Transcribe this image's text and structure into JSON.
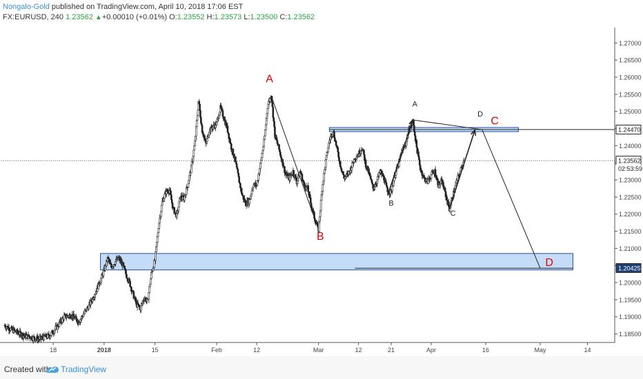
{
  "header": {
    "author": "Nongalo-Gold",
    "published": " published on TradingView.com, April 10, 2018 17:06 EST",
    "symbol": "FX:EURUSD, 240",
    "last": "1.23562",
    "change": "+0.00010 (+0.01%)",
    "o_label": "O:",
    "o_value": "1.23552",
    "h_label": "H:",
    "h_value": "1.23573",
    "l_label": "L:",
    "l_value": "1.23500",
    "c_label": "C:",
    "c_value": "1.23562"
  },
  "footer": {
    "created_with": "Created with",
    "brand": "TradingView"
  },
  "colors": {
    "up": "#2aa542",
    "candle": "#222222",
    "zone": "#b7d3f7",
    "zone_border": "#1f4e9c",
    "red_label": "#e00000",
    "axis_text": "#444444"
  },
  "chart_data": {
    "type": "candlestick",
    "y_axis": {
      "range": [
        1.1825,
        1.2745
      ],
      "ticks": [
        "1.18500",
        "1.19000",
        "1.19500",
        "1.20000",
        "1.20500",
        "1.21000",
        "1.21500",
        "1.22000",
        "1.22500",
        "1.23000",
        "1.23500",
        "1.24000",
        "1.24500",
        "1.25000",
        "1.25500",
        "1.26000",
        "1.26500",
        "1.27000"
      ],
      "price_labels": [
        {
          "text": "1.24470",
          "value": 1.2447,
          "style": "outline"
        },
        {
          "text": "1.23562",
          "value": 1.23562,
          "style": "outline"
        },
        {
          "text": "02:53:59",
          "value": 1.2333,
          "style": "plain"
        },
        {
          "text": "1.20425",
          "value": 1.20425,
          "style": "filled"
        }
      ]
    },
    "x_axis": {
      "ticks": [
        {
          "label": "18",
          "day": -14
        },
        {
          "label": "2018",
          "day": 0,
          "bold": true
        },
        {
          "label": "15",
          "day": 14
        },
        {
          "label": "Feb",
          "day": 31
        },
        {
          "label": "12",
          "day": 42
        },
        {
          "label": "Mar",
          "day": 59
        },
        {
          "label": "12",
          "day": 70
        },
        {
          "label": "21",
          "day": 79
        },
        {
          "label": "Apr",
          "day": 90
        },
        {
          "label": "16",
          "day": 105
        },
        {
          "label": "May",
          "day": 120
        },
        {
          "label": "14",
          "day": 133
        }
      ]
    },
    "price_path": [
      [
        -27.5,
        1.1875
      ],
      [
        -25,
        1.186
      ],
      [
        -22,
        1.1845
      ],
      [
        -18,
        1.1835
      ],
      [
        -15,
        1.1845
      ],
      [
        -13,
        1.187
      ],
      [
        -11,
        1.19
      ],
      [
        -9,
        1.1905
      ],
      [
        -7,
        1.1885
      ],
      [
        -4,
        1.1935
      ],
      [
        -2,
        1.198
      ],
      [
        0,
        1.2035
      ],
      [
        1,
        1.207
      ],
      [
        2,
        1.2045
      ],
      [
        3,
        1.206
      ],
      [
        4,
        1.207
      ],
      [
        5,
        1.2055
      ],
      [
        6,
        1.2025
      ],
      [
        7,
        1.2
      ],
      [
        8,
        1.1965
      ],
      [
        9,
        1.1935
      ],
      [
        10,
        1.1925
      ],
      [
        11,
        1.1955
      ],
      [
        12,
        1.1945
      ],
      [
        13,
        1.2025
      ],
      [
        14,
        1.2065
      ],
      [
        15,
        1.2165
      ],
      [
        16,
        1.2235
      ],
      [
        17,
        1.2265
      ],
      [
        18,
        1.227
      ],
      [
        19,
        1.2215
      ],
      [
        20,
        1.2195
      ],
      [
        21,
        1.225
      ],
      [
        22,
        1.2245
      ],
      [
        23,
        1.2285
      ],
      [
        24,
        1.2335
      ],
      [
        25,
        1.241
      ],
      [
        26,
        1.253
      ],
      [
        27,
        1.2445
      ],
      [
        28,
        1.2405
      ],
      [
        29,
        1.2445
      ],
      [
        30,
        1.2455
      ],
      [
        31,
        1.2465
      ],
      [
        32,
        1.251
      ],
      [
        33,
        1.248
      ],
      [
        34,
        1.2445
      ],
      [
        35,
        1.2395
      ],
      [
        36,
        1.236
      ],
      [
        37,
        1.2305
      ],
      [
        38,
        1.2255
      ],
      [
        39,
        1.223
      ],
      [
        40,
        1.224
      ],
      [
        41,
        1.2285
      ],
      [
        42,
        1.2285
      ],
      [
        43,
        1.2345
      ],
      [
        44,
        1.241
      ],
      [
        45,
        1.2515
      ],
      [
        46,
        1.255
      ],
      [
        47,
        1.243
      ],
      [
        48,
        1.2395
      ],
      [
        49,
        1.2355
      ],
      [
        50,
        1.2315
      ],
      [
        51,
        1.2305
      ],
      [
        52,
        1.2325
      ],
      [
        53,
        1.2295
      ],
      [
        54,
        1.2325
      ],
      [
        55,
        1.2285
      ],
      [
        56,
        1.2275
      ],
      [
        57,
        1.2225
      ],
      [
        58,
        1.2185
      ],
      [
        59,
        1.2155
      ],
      [
        60,
        1.2275
      ],
      [
        61,
        1.2355
      ],
      [
        62,
        1.2415
      ],
      [
        63,
        1.2445
      ],
      [
        64,
        1.2395
      ],
      [
        65,
        1.2345
      ],
      [
        66,
        1.2305
      ],
      [
        67,
        1.2315
      ],
      [
        68,
        1.2335
      ],
      [
        69,
        1.2365
      ],
      [
        70,
        1.2375
      ],
      [
        71,
        1.2395
      ],
      [
        72,
        1.2345
      ],
      [
        73,
        1.2315
      ],
      [
        74,
        1.2275
      ],
      [
        75,
        1.2295
      ],
      [
        76,
        1.2325
      ],
      [
        77,
        1.2305
      ],
      [
        78,
        1.2265
      ],
      [
        79,
        1.2265
      ],
      [
        80,
        1.2315
      ],
      [
        81,
        1.2345
      ],
      [
        82,
        1.2385
      ],
      [
        83,
        1.2405
      ],
      [
        84,
        1.245
      ],
      [
        85,
        1.247
      ],
      [
        86,
        1.2395
      ],
      [
        87,
        1.2335
      ],
      [
        88,
        1.2305
      ],
      [
        89,
        1.2295
      ],
      [
        90,
        1.2315
      ],
      [
        91,
        1.2325
      ],
      [
        92,
        1.2285
      ],
      [
        93,
        1.2295
      ],
      [
        94,
        1.2255
      ],
      [
        95,
        1.2215
      ],
      [
        96,
        1.2255
      ],
      [
        97,
        1.2295
      ],
      [
        98,
        1.2325
      ],
      [
        99,
        1.2356
      ]
    ],
    "zones": [
      {
        "from_day": -1,
        "to_day": 129,
        "low": 1.2037,
        "high": 1.2085
      },
      {
        "from_day": 62,
        "to_day": 114,
        "low": 1.2441,
        "high": 1.2453
      }
    ],
    "horizontal_lines": [
      {
        "value": 1.2447,
        "from_day": 62,
        "style": "solid"
      },
      {
        "value": 1.23562,
        "from_day": -30,
        "style": "dotted"
      },
      {
        "value": 1.2042,
        "from_day": 69,
        "to_day": 129,
        "style": "solid"
      }
    ],
    "projection_lines": [
      {
        "points": [
          [
            46,
            1.2545
          ],
          [
            59,
            1.2155
          ]
        ]
      },
      {
        "points": [
          [
            85,
            1.2475
          ],
          [
            104,
            1.2447
          ],
          [
            120,
            1.2042
          ]
        ]
      }
    ],
    "pattern_lines": [
      {
        "points": [
          [
            78,
            1.2255
          ],
          [
            85,
            1.2475
          ]
        ]
      },
      {
        "points": [
          [
            95,
            1.2215
          ],
          [
            102,
            1.2445
          ]
        ]
      }
    ],
    "annotations": [
      {
        "text": "A",
        "day": 45.5,
        "value": 1.2585,
        "color": "red",
        "size": 16
      },
      {
        "text": "B",
        "day": 59.5,
        "value": 1.2125,
        "color": "red",
        "size": 16
      },
      {
        "text": "C",
        "day": 107.5,
        "value": 1.2462,
        "color": "red",
        "size": 16
      },
      {
        "text": "D",
        "day": 122.5,
        "value": 1.2048,
        "color": "red",
        "size": 16
      },
      {
        "text": "A",
        "day": 85.5,
        "value": 1.2514,
        "color": "dark",
        "size": 11
      },
      {
        "text": "B",
        "day": 79,
        "value": 1.2225,
        "color": "dark",
        "size": 11
      },
      {
        "text": "C",
        "day": 96,
        "value": 1.2195,
        "color": "dark",
        "size": 11
      },
      {
        "text": "D",
        "day": 103.5,
        "value": 1.2485,
        "color": "dark",
        "size": 11
      }
    ]
  }
}
